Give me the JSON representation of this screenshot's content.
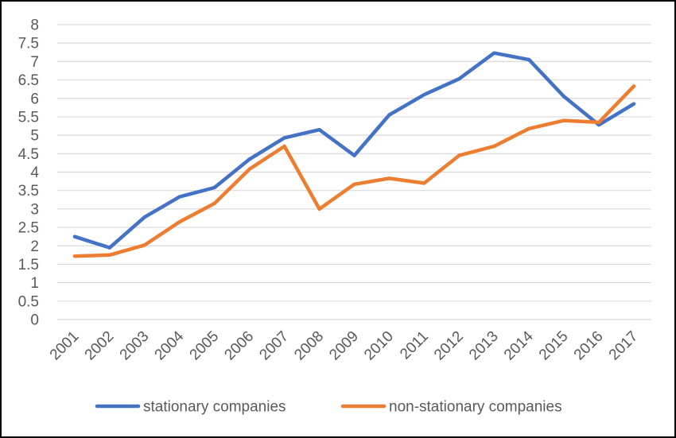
{
  "chart_data": {
    "type": "line",
    "title": "",
    "xlabel": "",
    "ylabel": "",
    "x": [
      "2001",
      "2002",
      "2003",
      "2004",
      "2005",
      "2006",
      "2007",
      "2008",
      "2009",
      "2010",
      "2011",
      "2012",
      "2013",
      "2014",
      "2015",
      "2016",
      "2017"
    ],
    "yticks": [
      "0",
      "0.5",
      "1",
      "1.5",
      "2",
      "2.5",
      "3",
      "3.5",
      "4",
      "4.5",
      "5",
      "5.5",
      "6",
      "6.5",
      "7",
      "7.5",
      "8"
    ],
    "ylim": [
      0,
      8
    ],
    "grid": true,
    "legend_position": "bottom",
    "series": [
      {
        "name": "stationary companies",
        "color": "#4472C4",
        "values": [
          2.25,
          1.95,
          2.78,
          3.33,
          3.58,
          4.35,
          4.93,
          5.15,
          4.45,
          5.55,
          6.1,
          6.53,
          7.23,
          7.05,
          6.05,
          5.28,
          5.85
        ]
      },
      {
        "name": "non-stationary companies",
        "color": "#ED7D31",
        "values": [
          1.72,
          1.75,
          2.02,
          2.65,
          3.15,
          4.08,
          4.7,
          3.0,
          3.67,
          3.83,
          3.7,
          4.45,
          4.7,
          5.18,
          5.4,
          5.35,
          6.33
        ]
      }
    ]
  }
}
